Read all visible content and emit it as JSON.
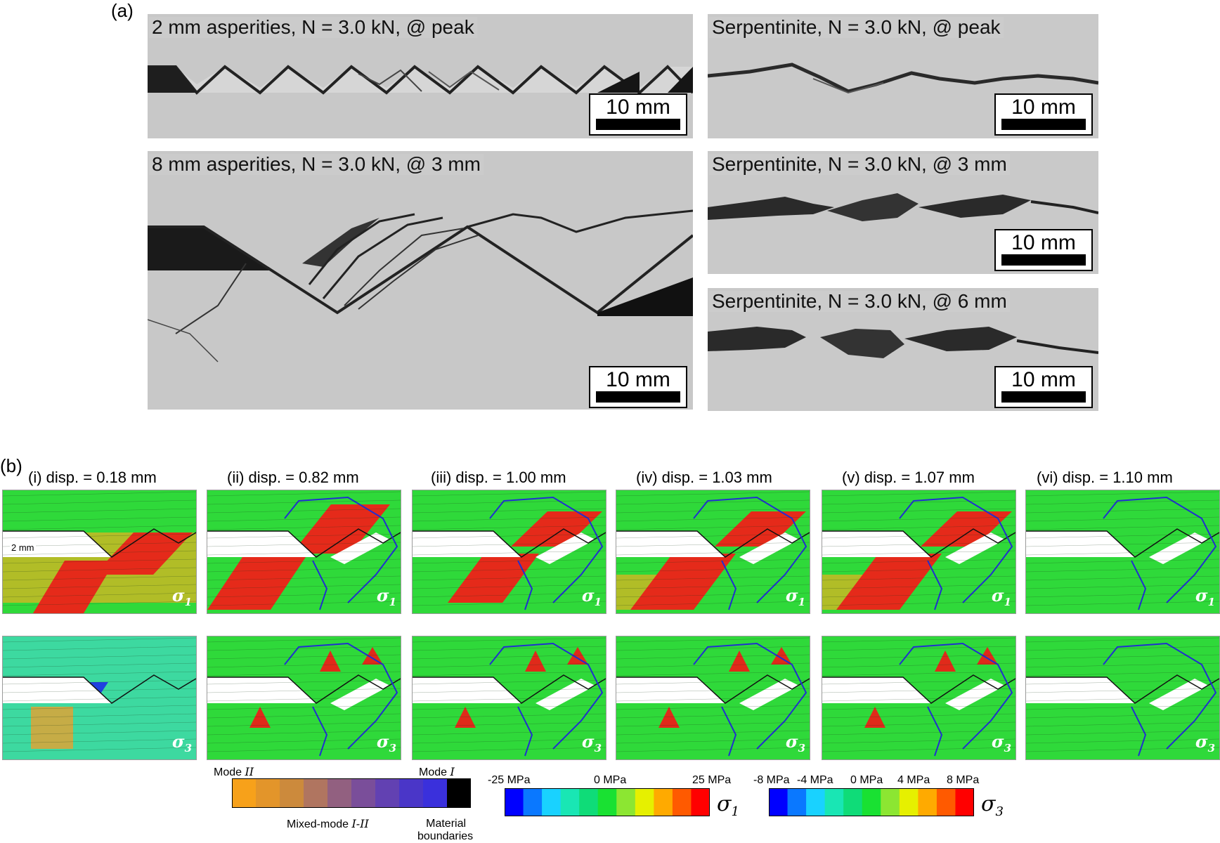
{
  "part_a": {
    "label": "(a)",
    "photos": [
      {
        "title": "2 mm asperities, N = 3.0 kN, @ peak",
        "scale": "10 mm"
      },
      {
        "title": "Serpentinite, N = 3.0 kN, @ peak",
        "scale": "10 mm"
      },
      {
        "title": "8 mm asperities, N = 3.0 kN, @ 3 mm",
        "scale": "10 mm"
      },
      {
        "title": "Serpentinite, N = 3.0 kN, @ 3 mm",
        "scale": "10 mm"
      },
      {
        "title": "Serpentinite, N = 3.0 kN, @ 6 mm",
        "scale": "10 mm"
      }
    ]
  },
  "part_b": {
    "label": "(b)",
    "annotation": "2 mm",
    "sigma1": "σ",
    "sigma1_sub": "1",
    "sigma3": "σ",
    "sigma3_sub": "3",
    "panels": [
      {
        "title": "(i) disp. = 0.18 mm"
      },
      {
        "title": "(ii) disp. = 0.82 mm"
      },
      {
        "title": "(iii) disp. = 1.00 mm"
      },
      {
        "title": "(iv) disp. = 1.03 mm"
      },
      {
        "title": "(v) disp. = 1.07 mm"
      },
      {
        "title": "(vi) disp. = 1.10 mm"
      }
    ]
  },
  "legend": {
    "mode": {
      "left_label": "Mode ",
      "left_label_italic": "II",
      "right_label": "Mode ",
      "right_label_italic": "I",
      "middle_label": "Mixed-mode ",
      "middle_label_italic": "I-II",
      "material_label_1": "Material",
      "material_label_2": "boundaries",
      "colors": [
        "#f7a11a",
        "#e3952a",
        "#cc8a3c",
        "#b07560",
        "#926080",
        "#7a4e9a",
        "#6241b2",
        "#4a36c8",
        "#3a30dc",
        "#000000"
      ]
    },
    "sigma1": {
      "ticks": [
        "-25 MPa",
        "0 MPa",
        "25 MPa"
      ],
      "symbol": "σ",
      "sub": "1",
      "colors": [
        "#0000ff",
        "#0a78ff",
        "#19d2ff",
        "#19e6b4",
        "#0fdc78",
        "#19e132",
        "#8ce632",
        "#e6f000",
        "#ffaa00",
        "#ff5a00",
        "#ff0000"
      ]
    },
    "sigma3": {
      "ticks": [
        "-8 MPa",
        "-4 MPa",
        "0 MPa",
        "4 MPa",
        "8 MPa"
      ],
      "symbol": "σ",
      "sub": "3",
      "colors": [
        "#0000ff",
        "#0a78ff",
        "#19d2ff",
        "#19e6b4",
        "#0fdc78",
        "#19e132",
        "#8ce632",
        "#e6f000",
        "#ffaa00",
        "#ff5a00",
        "#ff0000"
      ]
    }
  }
}
